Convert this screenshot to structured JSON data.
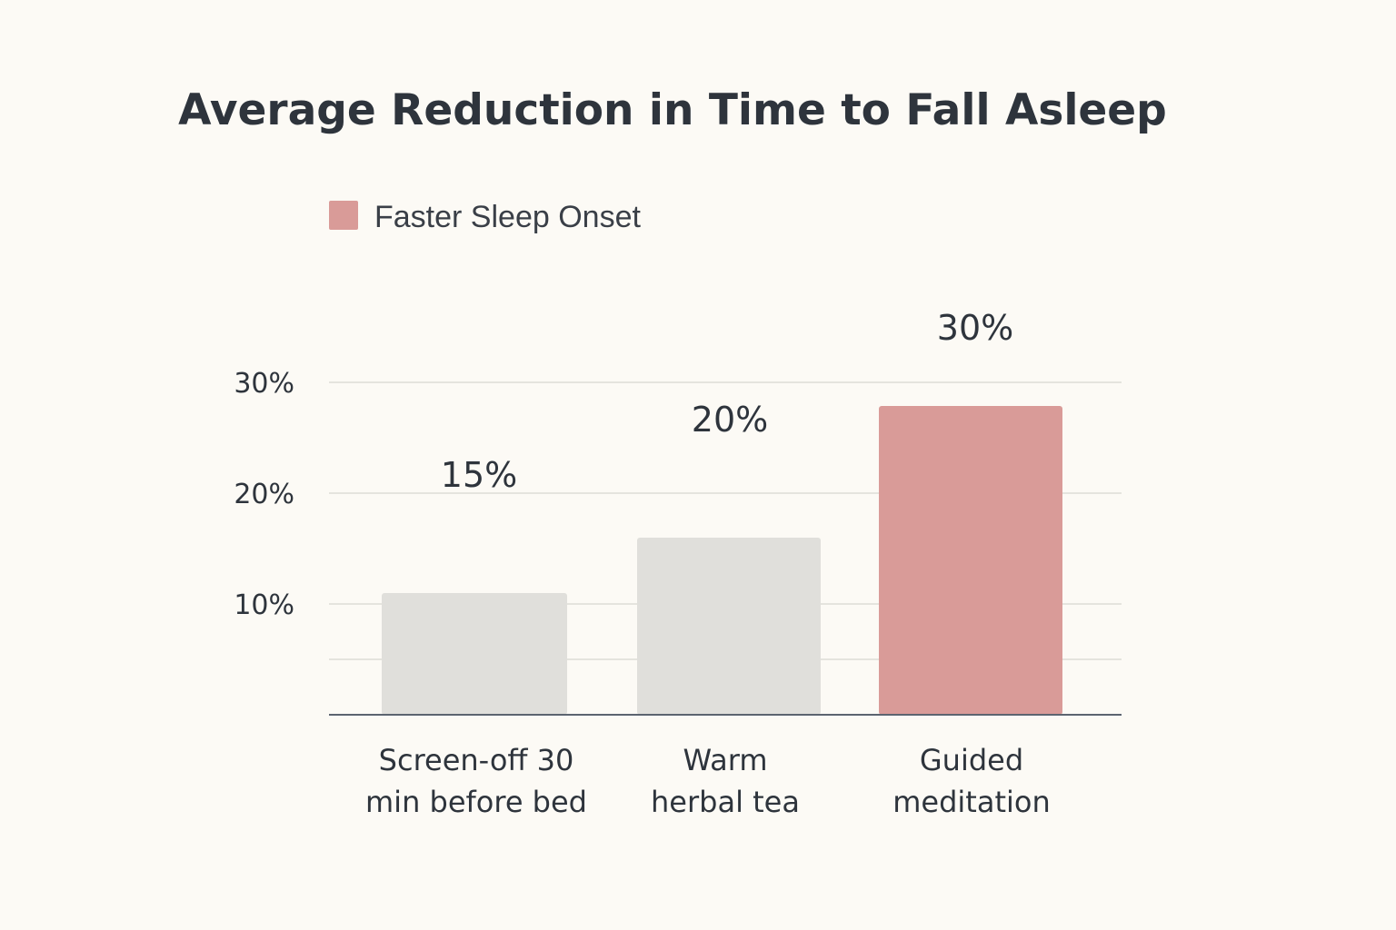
{
  "chart_data": {
    "type": "bar",
    "title": "Average Reduction in Time to Fall Asleep",
    "xlabel": "",
    "ylabel": "",
    "categories": [
      [
        "Screen-off 30",
        "min before bed"
      ],
      [
        "Warm",
        "herbal tea"
      ],
      [
        "Guided",
        "meditation"
      ]
    ],
    "series": [
      {
        "name": "Faster Sleep Onset",
        "values": [
          15,
          20,
          30
        ],
        "data_labels": [
          "15%",
          "20%",
          "30%"
        ]
      }
    ],
    "bar_colors": [
      "#e0dfdb",
      "#e0dfdb",
      "#d99b98"
    ],
    "legend": {
      "label": "Faster Sleep Onset",
      "color": "#d99b98",
      "placement": "top-left"
    },
    "y_ticks": [
      {
        "value": 10,
        "label": "10%"
      },
      {
        "value": 20,
        "label": "20%"
      },
      {
        "value": 30,
        "label": "30%"
      }
    ],
    "ylim": [
      0,
      40
    ],
    "grid": true
  }
}
